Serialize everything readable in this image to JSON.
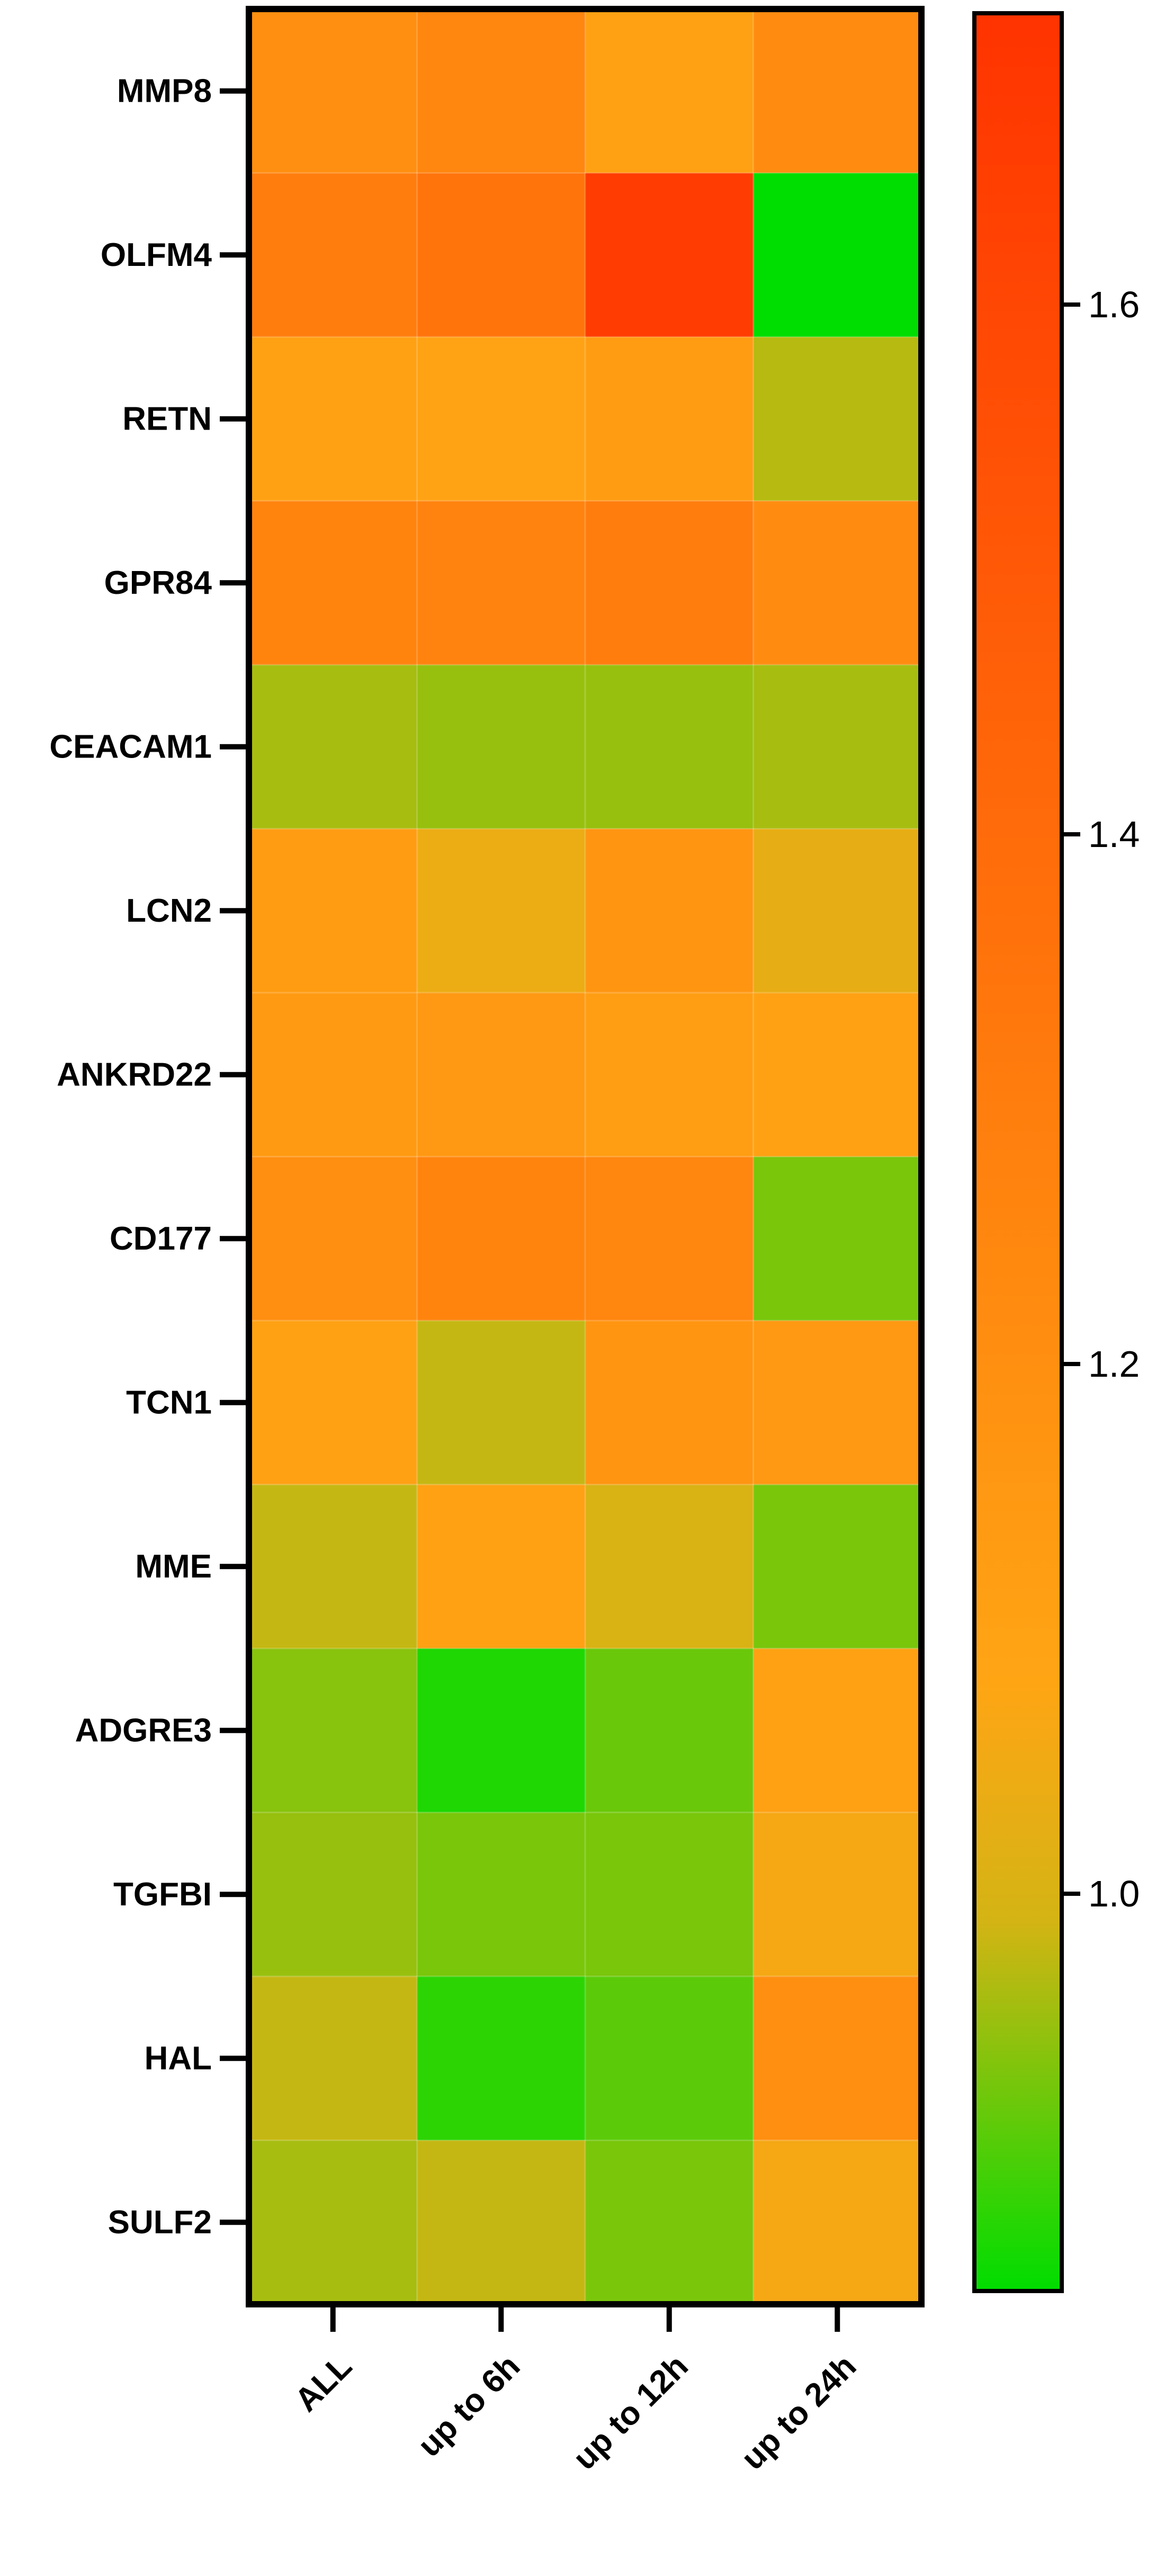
{
  "chart_data": {
    "type": "heatmap",
    "rows": [
      "MMP8",
      "OLFM4",
      "RETN",
      "GPR84",
      "CEACAM1",
      "LCN2",
      "ANKRD22",
      "CD177",
      "TCN1",
      "MME",
      "ADGRE3",
      "TGFBI",
      "HAL",
      "SULF2"
    ],
    "columns": [
      "ALL",
      "up to 6h",
      "up to 12h",
      "up to 24h"
    ],
    "values": [
      [
        1.2,
        1.25,
        1.1,
        1.22
      ],
      [
        1.3,
        1.35,
        1.66,
        0.85
      ],
      [
        1.1,
        1.09,
        1.13,
        0.97
      ],
      [
        1.26,
        1.27,
        1.3,
        1.22
      ],
      [
        0.96,
        0.95,
        0.95,
        0.96
      ],
      [
        1.13,
        1.04,
        1.17,
        1.03
      ],
      [
        1.14,
        1.15,
        1.12,
        1.1
      ],
      [
        1.2,
        1.26,
        1.25,
        0.93
      ],
      [
        1.1,
        0.98,
        1.17,
        1.15
      ],
      [
        0.98,
        1.1,
        1.0,
        0.93
      ],
      [
        0.94,
        0.87,
        0.92,
        1.1
      ],
      [
        0.95,
        0.93,
        0.93,
        1.06
      ],
      [
        0.98,
        0.88,
        0.91,
        1.2
      ],
      [
        0.96,
        0.98,
        0.93,
        1.06
      ]
    ],
    "colorbar": {
      "range": [
        0.85,
        1.71
      ],
      "ticks": [
        1.0,
        1.2,
        1.4,
        1.6
      ],
      "tick_labels": [
        "1.0",
        "1.2",
        "1.4",
        "1.6"
      ],
      "colors": [
        "#00dd00",
        "#d4b414",
        "#ffa514",
        "#ff3300"
      ]
    },
    "title": "",
    "xlabel": "",
    "ylabel": ""
  }
}
